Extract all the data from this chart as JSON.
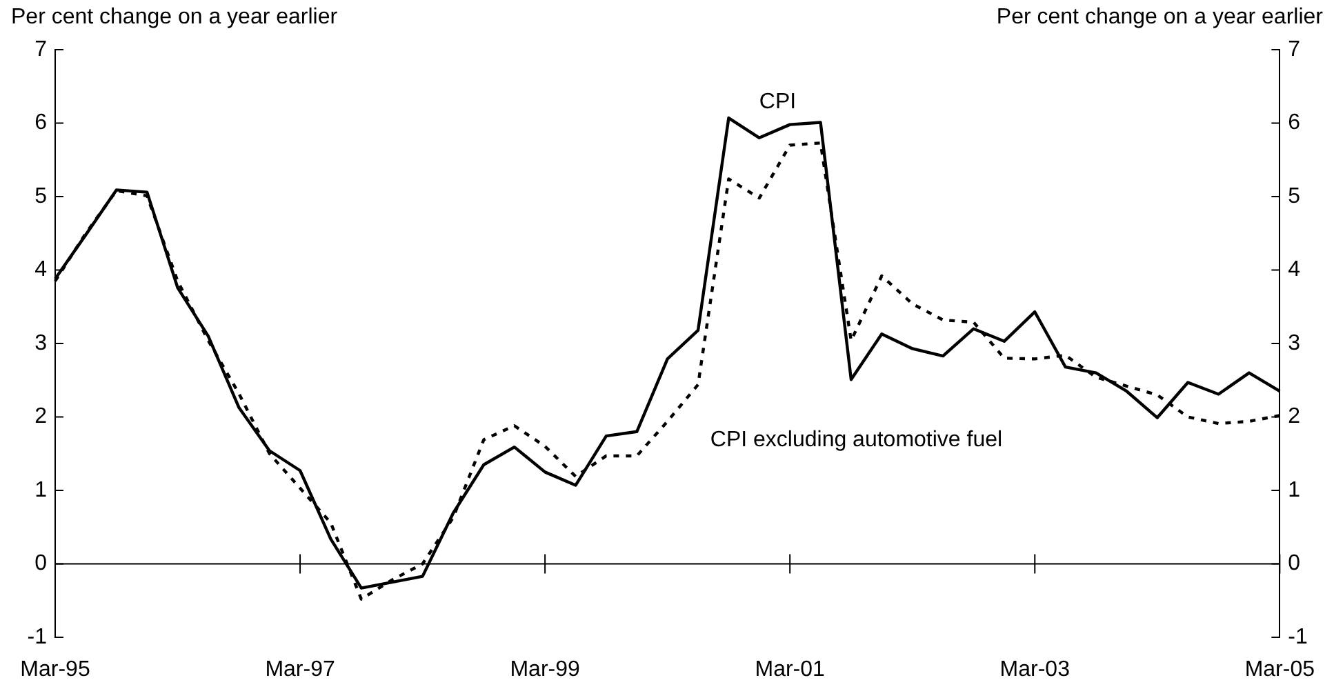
{
  "chart_data": {
    "type": "line",
    "ylabel": "Per cent change on a year earlier",
    "y2label": "Per cent change on a year earlier",
    "categories": [
      "Mar-95",
      null,
      null,
      null,
      null,
      null,
      null,
      null,
      "Mar-97",
      null,
      null,
      null,
      null,
      null,
      null,
      null,
      "Mar-99",
      null,
      null,
      null,
      null,
      null,
      null,
      null,
      "Mar-01",
      null,
      null,
      null,
      null,
      null,
      null,
      null,
      "Mar-03",
      null,
      null,
      null,
      null,
      null,
      null,
      null,
      "Mar-05"
    ],
    "series": [
      {
        "name": "CPI",
        "color": "#000000",
        "line_style": "solid",
        "values": [
          3.88,
          4.48,
          5.09,
          5.06,
          3.76,
          3.1,
          2.13,
          1.54,
          1.27,
          0.34,
          -0.33,
          -0.25,
          -0.17,
          0.69,
          1.35,
          1.59,
          1.25,
          1.07,
          1.74,
          1.8,
          2.79,
          3.18,
          6.07,
          5.8,
          5.98,
          6.01,
          2.51,
          3.13,
          2.93,
          2.83,
          3.2,
          3.03,
          3.43,
          2.68,
          2.6,
          2.35,
          1.99,
          2.47,
          2.31,
          2.6,
          2.35
        ]
      },
      {
        "name": "CPI excluding automotive fuel",
        "color": "#000000",
        "line_style": "dotted",
        "values": [
          3.85,
          4.5,
          5.08,
          5.01,
          3.85,
          3.04,
          2.32,
          1.5,
          1.03,
          0.56,
          -0.48,
          -0.22,
          0.0,
          0.63,
          1.69,
          1.88,
          1.6,
          1.19,
          1.47,
          1.47,
          1.94,
          2.44,
          5.24,
          4.98,
          5.7,
          5.73,
          3.04,
          3.92,
          3.54,
          3.32,
          3.29,
          2.8,
          2.79,
          2.84,
          2.54,
          2.42,
          2.3,
          2.0,
          1.91,
          1.94,
          2.02
        ]
      }
    ],
    "ylim": [
      -1,
      7
    ],
    "yticks": [
      -1,
      0,
      1,
      2,
      3,
      4,
      5,
      6,
      7
    ],
    "y2lim": [
      -1,
      7
    ],
    "y2ticks": [
      -1,
      0,
      1,
      2,
      3,
      4,
      5,
      6,
      7
    ],
    "ref_lines": [
      {
        "axis": "y",
        "value": 0,
        "color": "#000000",
        "line_style": "solid"
      }
    ],
    "grid": false,
    "legend": false,
    "marker": "none"
  }
}
